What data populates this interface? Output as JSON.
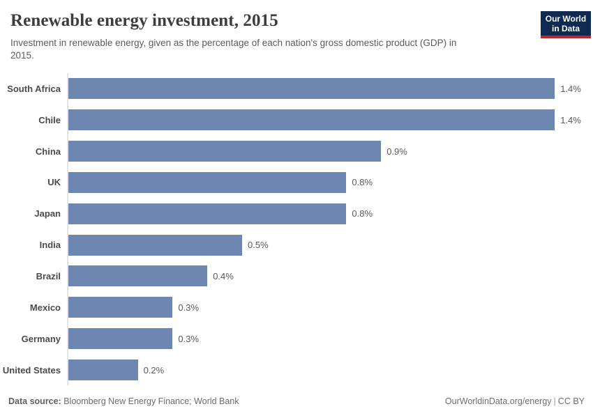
{
  "header": {
    "title": "Renewable energy investment, 2015",
    "subtitle_line1": "Investment in renewable energy, given as the percentage of each nation's gross domestic product (GDP) in",
    "subtitle_line2": "2015.",
    "logo": {
      "line1": "Our World",
      "line2": "in Data",
      "bg_color": "#0e2a52",
      "stripe_color": "#b5292f"
    }
  },
  "chart_data": {
    "type": "bar",
    "orientation": "horizontal",
    "title": "Renewable energy investment, 2015",
    "xlabel": "",
    "ylabel": "",
    "unit": "% of GDP",
    "categories": [
      "South Africa",
      "Chile",
      "China",
      "UK",
      "Japan",
      "India",
      "Brazil",
      "Mexico",
      "Germany",
      "United States"
    ],
    "values": [
      1.4,
      1.4,
      0.9,
      0.8,
      0.8,
      0.5,
      0.4,
      0.3,
      0.3,
      0.2
    ],
    "value_labels": [
      "1.4%",
      "1.4%",
      "0.9%",
      "0.8%",
      "0.8%",
      "0.5%",
      "0.4%",
      "0.3%",
      "0.3%",
      "0.2%"
    ],
    "xlim": [
      0,
      1.51
    ],
    "grid": false,
    "legend": "none",
    "bar_color": "#6d87b0",
    "axis_line_color": "#e5e5e5"
  },
  "footer": {
    "source_label": "Data source:",
    "source_text": " Bloomberg New Energy Finance; World Bank",
    "url": "OurWorldinData.org/energy",
    "separator": "|",
    "license": "CC BY"
  }
}
